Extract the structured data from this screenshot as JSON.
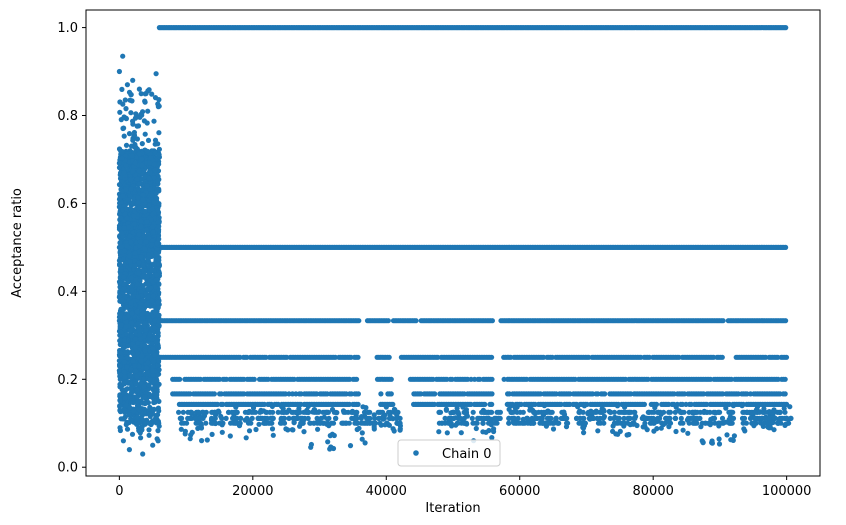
{
  "chart_data": {
    "type": "scatter",
    "title": "",
    "xlabel": "Iteration",
    "ylabel": "Acceptance ratio",
    "xlim": [
      -5000,
      105000
    ],
    "ylim": [
      -0.02,
      1.04
    ],
    "xticks": [
      0,
      20000,
      40000,
      60000,
      80000,
      100000
    ],
    "yticks": [
      0.0,
      0.2,
      0.4,
      0.6,
      0.8,
      1.0
    ],
    "xtick_labels": [
      "0",
      "20000",
      "40000",
      "60000",
      "80000",
      "100000"
    ],
    "ytick_labels": [
      "0.0",
      "0.2",
      "0.4",
      "0.6",
      "0.8",
      "1.0"
    ],
    "legend": {
      "position": "lower-center",
      "entries": [
        "Chain 0"
      ]
    },
    "colors": {
      "series": "#1f77b4"
    },
    "series": [
      {
        "name": "Chain 0",
        "marker": "point",
        "burn_in_end": 6000,
        "bands": [
          {
            "y": 1.0,
            "x_start": 6000,
            "x_end": 100000,
            "gaps": []
          },
          {
            "y": 0.5,
            "x_start": 0,
            "x_end": 100000,
            "gaps": []
          },
          {
            "y": 0.3333,
            "x_start": 0,
            "x_end": 100000,
            "gaps": [
              [
                36000,
                37000
              ],
              [
                40500,
                41000
              ],
              [
                44500,
                45000
              ],
              [
                56000,
                57000
              ],
              [
                90500,
                91000
              ]
            ]
          },
          {
            "y": 0.25,
            "x_start": 3000,
            "x_end": 100000,
            "gaps": [
              [
                36000,
                38500
              ],
              [
                40500,
                42000
              ],
              [
                56000,
                57500
              ],
              [
                90500,
                92000
              ]
            ]
          },
          {
            "y": 0.2,
            "x_start": 8000,
            "x_end": 100000,
            "gaps": [
              [
                36000,
                38500
              ],
              [
                41000,
                43500
              ],
              [
                56000,
                57500
              ]
            ]
          },
          {
            "y": 0.1667,
            "x_start": 8000,
            "x_end": 100000,
            "gaps": [
              [
                36000,
                39000
              ],
              [
                41000,
                44000
              ],
              [
                56000,
                58000
              ]
            ]
          },
          {
            "y": 0.1429,
            "x_start": 9000,
            "x_end": 100000,
            "gaps": [
              [
                36000,
                39000
              ],
              [
                41000,
                44000
              ],
              [
                56000,
                58000
              ]
            ]
          }
        ],
        "burn_in_scatter": {
          "x_range": [
            0,
            6000
          ],
          "y_range": [
            0.03,
            0.94
          ],
          "example_points": [
            [
              0,
              0.9
            ],
            [
              500,
              0.935
            ],
            [
              1200,
              0.87
            ],
            [
              2000,
              0.88
            ],
            [
              3000,
              0.86
            ],
            [
              4000,
              0.85
            ],
            [
              5500,
              0.895
            ],
            [
              600,
              0.06
            ],
            [
              1500,
              0.04
            ],
            [
              3500,
              0.03
            ],
            [
              5000,
              0.05
            ],
            [
              5800,
              0.06
            ]
          ]
        },
        "low_clusters": [
          {
            "x": 11000,
            "y_min": 0.06
          },
          {
            "x": 16000,
            "y_min": 0.07
          },
          {
            "x": 21000,
            "y_min": 0.065
          },
          {
            "x": 26000,
            "y_min": 0.08
          },
          {
            "x": 30500,
            "y_min": 0.04
          },
          {
            "x": 35500,
            "y_min": 0.045
          },
          {
            "x": 40000,
            "y_min": 0.08
          },
          {
            "x": 50000,
            "y_min": 0.075
          },
          {
            "x": 55000,
            "y_min": 0.06
          },
          {
            "x": 60500,
            "y_min": 0.1
          },
          {
            "x": 65000,
            "y_min": 0.07
          },
          {
            "x": 70500,
            "y_min": 0.075
          },
          {
            "x": 75500,
            "y_min": 0.07
          },
          {
            "x": 80500,
            "y_min": 0.08
          },
          {
            "x": 85500,
            "y_min": 0.055
          },
          {
            "x": 90000,
            "y_min": 0.05
          },
          {
            "x": 95500,
            "y_min": 0.08
          },
          {
            "x": 98500,
            "y_min": 0.085
          }
        ]
      }
    ]
  }
}
